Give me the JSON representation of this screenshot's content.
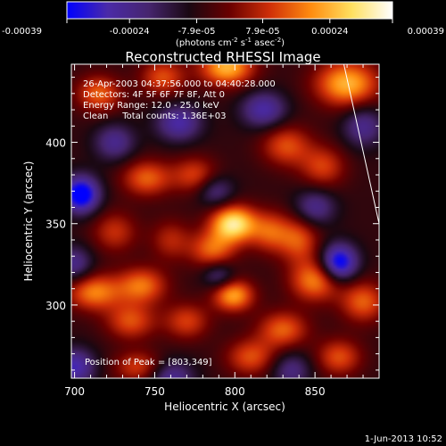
{
  "chart_data": {
    "type": "heatmap",
    "title": "Reconstructed RHESSI Image",
    "xlabel": "Heliocentric X (arcsec)",
    "ylabel": "Heliocentric Y (arcsec)",
    "xlim": [
      698,
      890
    ],
    "ylim": [
      255,
      448
    ],
    "x_ticks": [
      "700",
      "750",
      "800",
      "850"
    ],
    "x_tick_values": [
      700,
      750,
      800,
      850
    ],
    "y_ticks": [
      "300",
      "350",
      "400"
    ],
    "y_tick_values": [
      300,
      350,
      400
    ],
    "colorbar": {
      "ticks": [
        "-0.00039",
        "-0.00024",
        "-7.9e-05",
        "7.9e-05",
        "0.00024",
        "0.00039"
      ],
      "tick_values": [
        -0.00039,
        -0.00024,
        -7.9e-05,
        7.9e-05,
        0.00024,
        0.00039
      ],
      "range": [
        -0.00039,
        0.00039
      ],
      "units_parts": [
        "(photons cm",
        "-2",
        " s",
        "-1",
        " asec",
        "-2",
        ")"
      ]
    },
    "colormap": [
      "#0000ff",
      "#4a2aa8",
      "#46256e",
      "#1a0812",
      "#6a0000",
      "#d03008",
      "#ff8c10",
      "#ffe060",
      "#ffffff"
    ],
    "annotations": [
      "26-Apr-2003 04:37:56.000 to 04:40:28.000",
      "Detectors: 4F 5F 6F 7F 8F, Att 0",
      "Energy Range: 12.0 - 25.0 keV",
      "Clean     Total counts: 1.36E+03"
    ],
    "peak_label": "Position of Peak = [803,349]",
    "peak": [
      803,
      349
    ],
    "limb_line": [
      [
        868,
        448
      ],
      [
        890,
        350
      ]
    ],
    "sources": [
      {
        "x": 799,
        "y": 350,
        "amp": 1.0,
        "sx": 10,
        "sy": 8
      },
      {
        "x": 799,
        "y": 306,
        "amp": 0.75,
        "sx": 9,
        "sy": 7
      },
      {
        "x": 786,
        "y": 334,
        "amp": 0.55,
        "sx": 10,
        "sy": 8
      },
      {
        "x": 822,
        "y": 345,
        "amp": 0.5,
        "sx": 9,
        "sy": 9
      },
      {
        "x": 795,
        "y": 446,
        "amp": 0.8,
        "sx": 12,
        "sy": 8
      },
      {
        "x": 870,
        "y": 436,
        "amp": 0.8,
        "sx": 14,
        "sy": 10
      },
      {
        "x": 715,
        "y": 430,
        "amp": 0.55,
        "sx": 10,
        "sy": 8
      },
      {
        "x": 755,
        "y": 440,
        "amp": 0.5,
        "sx": 10,
        "sy": 8
      },
      {
        "x": 745,
        "y": 378,
        "amp": 0.55,
        "sx": 11,
        "sy": 8
      },
      {
        "x": 775,
        "y": 380,
        "amp": 0.45,
        "sx": 10,
        "sy": 8
      },
      {
        "x": 832,
        "y": 398,
        "amp": 0.5,
        "sx": 11,
        "sy": 9
      },
      {
        "x": 855,
        "y": 385,
        "amp": 0.45,
        "sx": 10,
        "sy": 9
      },
      {
        "x": 840,
        "y": 340,
        "amp": 0.5,
        "sx": 9,
        "sy": 10
      },
      {
        "x": 850,
        "y": 315,
        "amp": 0.65,
        "sx": 11,
        "sy": 9
      },
      {
        "x": 880,
        "y": 302,
        "amp": 0.55,
        "sx": 10,
        "sy": 9
      },
      {
        "x": 712,
        "y": 308,
        "amp": 0.65,
        "sx": 12,
        "sy": 8
      },
      {
        "x": 742,
        "y": 312,
        "amp": 0.6,
        "sx": 11,
        "sy": 8
      },
      {
        "x": 735,
        "y": 290,
        "amp": 0.5,
        "sx": 11,
        "sy": 8
      },
      {
        "x": 770,
        "y": 290,
        "amp": 0.45,
        "sx": 10,
        "sy": 8
      },
      {
        "x": 830,
        "y": 285,
        "amp": 0.55,
        "sx": 11,
        "sy": 8
      },
      {
        "x": 810,
        "y": 268,
        "amp": 0.5,
        "sx": 11,
        "sy": 8
      },
      {
        "x": 865,
        "y": 268,
        "amp": 0.5,
        "sx": 10,
        "sy": 8
      },
      {
        "x": 740,
        "y": 262,
        "amp": 0.45,
        "sx": 11,
        "sy": 7
      },
      {
        "x": 760,
        "y": 340,
        "amp": 0.35,
        "sx": 9,
        "sy": 9
      },
      {
        "x": 725,
        "y": 345,
        "amp": 0.4,
        "sx": 10,
        "sy": 9
      },
      {
        "x": 704,
        "y": 368,
        "amp": -0.95,
        "sx": 8,
        "sy": 8
      },
      {
        "x": 865,
        "y": 326,
        "amp": -0.9,
        "sx": 8,
        "sy": 8
      },
      {
        "x": 700,
        "y": 262,
        "amp": -0.6,
        "sx": 9,
        "sy": 8
      },
      {
        "x": 765,
        "y": 412,
        "amp": -0.55,
        "sx": 10,
        "sy": 8
      },
      {
        "x": 818,
        "y": 420,
        "amp": -0.55,
        "sx": 10,
        "sy": 8
      },
      {
        "x": 760,
        "y": 255,
        "amp": -0.5,
        "sx": 10,
        "sy": 8
      },
      {
        "x": 850,
        "y": 360,
        "amp": -0.45,
        "sx": 9,
        "sy": 8
      },
      {
        "x": 790,
        "y": 318,
        "amp": -0.4,
        "sx": 7,
        "sy": 6
      },
      {
        "x": 725,
        "y": 400,
        "amp": -0.45,
        "sx": 9,
        "sy": 8
      },
      {
        "x": 880,
        "y": 410,
        "amp": -0.45,
        "sx": 9,
        "sy": 9
      },
      {
        "x": 788,
        "y": 370,
        "amp": -0.4,
        "sx": 8,
        "sy": 7
      },
      {
        "x": 700,
        "y": 325,
        "amp": -0.45,
        "sx": 8,
        "sy": 8
      },
      {
        "x": 835,
        "y": 260,
        "amp": -0.4,
        "sx": 9,
        "sy": 8
      }
    ]
  },
  "footer": {
    "timestamp": "1-Jun-2013 10:52"
  }
}
